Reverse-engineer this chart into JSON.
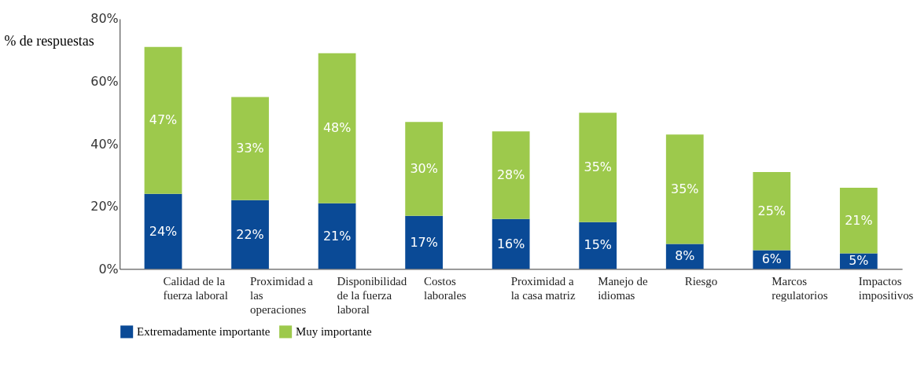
{
  "chart_data": {
    "type": "bar",
    "stacked": true,
    "ylabel": "% de respuestas",
    "categories": [
      "Calidad de la fuerza laboral",
      "Proximidad a las operaciones",
      "Disponibilidad de la fuerza laboral",
      "Costos laborales",
      "Proximidad a la casa matriz",
      "Manejo de idiomas",
      "Riesgo",
      "Marcos regulatorios",
      "Impactos impositivos"
    ],
    "series": [
      {
        "name": "Extremadamente importante",
        "color": "#0a4a96",
        "values": [
          24,
          22,
          21,
          17,
          16,
          15,
          8,
          6,
          5
        ],
        "value_labels": [
          "24%",
          "22%",
          "21%",
          "17%",
          "16%",
          "15%",
          "8%",
          "6%",
          "5%"
        ]
      },
      {
        "name": "Muy importante",
        "color": "#9dc94c",
        "values": [
          47,
          33,
          48,
          30,
          28,
          35,
          35,
          25,
          21
        ],
        "value_labels": [
          "47%",
          "33%",
          "48%",
          "30%",
          "28%",
          "35%",
          "35%",
          "25%",
          "21%"
        ]
      }
    ],
    "ylim": [
      0,
      80
    ],
    "yticks": [
      {
        "value": 0,
        "label": "0%"
      },
      {
        "value": 20,
        "label": "20%"
      },
      {
        "value": 40,
        "label": "40%"
      },
      {
        "value": 60,
        "label": "60%"
      },
      {
        "value": 80,
        "label": "80%"
      }
    ],
    "grid": false,
    "legend": "bottom"
  }
}
